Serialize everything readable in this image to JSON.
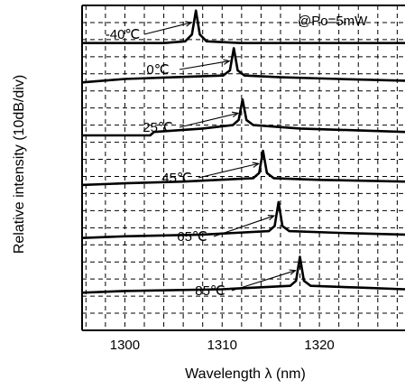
{
  "chart_data": {
    "type": "line",
    "title": "",
    "annotation": "@Po=5mW",
    "xlabel": "Wavelength  λ (nm)",
    "ylabel": "Relative intensity (10dB/div)",
    "xlim": [
      1295.6,
      1328.8
    ],
    "x_ticks": [
      1300,
      1310,
      1320
    ],
    "y_divisions": 19,
    "grid": true,
    "series": [
      {
        "name": "-40℃",
        "peak_wavelength": 1307.3,
        "peak_div": 18.7,
        "base_div": 16.8,
        "x": [
          1295.6,
          1300,
          1304,
          1306.2,
          1306.9,
          1307.3,
          1307.7,
          1308.4,
          1312,
          1320,
          1328.8
        ],
        "y": [
          16.8,
          16.8,
          16.8,
          16.9,
          17.3,
          18.7,
          17.3,
          16.9,
          16.8,
          16.8,
          16.8
        ]
      },
      {
        "name": "0℃",
        "peak_wavelength": 1311.2,
        "peak_div": 16.5,
        "base_div": 14.5,
        "x": [
          1295.6,
          1300,
          1305,
          1310.1,
          1310.8,
          1311.2,
          1311.6,
          1312.3,
          1316,
          1322,
          1328.8
        ],
        "y": [
          14.5,
          14.7,
          14.8,
          14.9,
          15.2,
          16.5,
          15.2,
          14.9,
          14.8,
          14.7,
          14.6
        ]
      },
      {
        "name": "25℃",
        "peak_wavelength": 1312.1,
        "peak_div": 13.5,
        "base_div": 11.4,
        "x": [
          1295.6,
          1300,
          1302.6,
          1303,
          1308,
          1311.1,
          1311.7,
          1312.1,
          1312.5,
          1313.2,
          1318,
          1328.8
        ],
        "y": [
          11.4,
          11.4,
          11.4,
          11.6,
          11.8,
          12.0,
          12.3,
          13.5,
          12.3,
          12.0,
          11.8,
          11.6
        ]
      },
      {
        "name": "45℃",
        "peak_wavelength": 1314.2,
        "peak_div": 10.5,
        "base_div": 8.5,
        "x": [
          1295.6,
          1300,
          1306,
          1313.2,
          1313.8,
          1314.2,
          1314.6,
          1315.3,
          1320,
          1328.8
        ],
        "y": [
          8.5,
          8.6,
          8.7,
          8.9,
          9.2,
          10.5,
          9.2,
          8.9,
          8.8,
          8.7
        ]
      },
      {
        "name": "65℃",
        "peak_wavelength": 1315.8,
        "peak_div": 7.5,
        "base_div": 5.4,
        "x": [
          1295.6,
          1300,
          1308,
          1314.8,
          1315.4,
          1315.8,
          1316.2,
          1316.9,
          1322,
          1328.8
        ],
        "y": [
          5.4,
          5.5,
          5.6,
          5.8,
          6.1,
          7.5,
          6.1,
          5.8,
          5.7,
          5.6
        ]
      },
      {
        "name": "85℃",
        "peak_wavelength": 1318.0,
        "peak_div": 4.3,
        "base_div": 2.2,
        "x": [
          1295.6,
          1300,
          1310,
          1317,
          1317.6,
          1318.0,
          1318.4,
          1319.1,
          1324,
          1328.8
        ],
        "y": [
          2.2,
          2.3,
          2.4,
          2.6,
          2.9,
          4.3,
          2.9,
          2.6,
          2.5,
          2.4
        ]
      }
    ]
  }
}
